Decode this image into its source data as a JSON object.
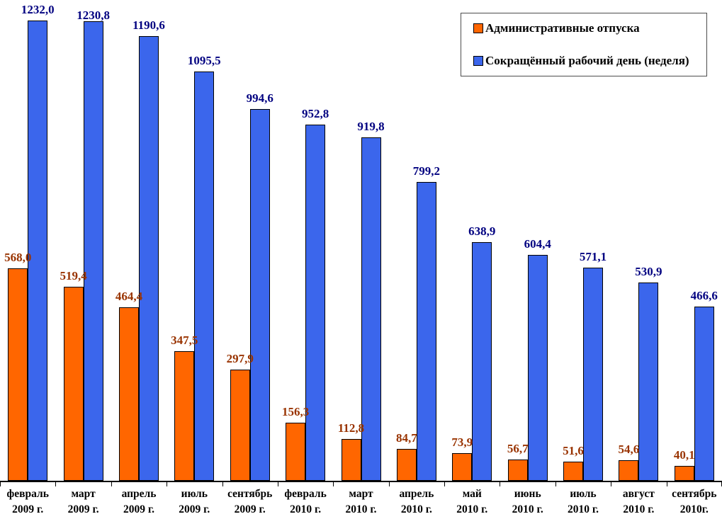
{
  "chart_data": {
    "type": "bar",
    "title": "",
    "xlabel": "",
    "ylabel": "",
    "ylim": [
      0,
      1300
    ],
    "grid": false,
    "legend_position": "top-right",
    "value_decimal_separator": ",",
    "axis_color": "#000000",
    "bar_border_color": "#000000",
    "categories": [
      {
        "month": "февраль",
        "year": "2009 г."
      },
      {
        "month": "март",
        "year": "2009 г."
      },
      {
        "month": "апрель",
        "year": "2009 г."
      },
      {
        "month": "июль",
        "year": "2009 г."
      },
      {
        "month": "сентябрь",
        "year": "2009 г."
      },
      {
        "month": "февраль",
        "year": "2010 г."
      },
      {
        "month": "март",
        "year": "2010 г."
      },
      {
        "month": "апрель",
        "year": "2010 г."
      },
      {
        "month": "май",
        "year": "2010 г."
      },
      {
        "month": "июнь",
        "year": "2010 г."
      },
      {
        "month": "июль",
        "year": "2010 г."
      },
      {
        "month": "август",
        "year": "2010 г."
      },
      {
        "month": "сентябрь",
        "year": "2010г."
      }
    ],
    "series": [
      {
        "name": "Административные отпуска",
        "color": "#FF6600",
        "label_color": "#993300",
        "values": [
          568.0,
          519.4,
          464.4,
          347.5,
          297.9,
          156.3,
          112.8,
          84.7,
          73.9,
          56.7,
          51.6,
          54.6,
          40.1
        ],
        "labels": [
          "568,0",
          "519,4",
          "464,4",
          "347,5",
          "297,9",
          "156,3",
          "112,8",
          "84,7",
          "73,9",
          "56,7",
          "51,6",
          "54,6",
          "40,1"
        ]
      },
      {
        "name": "Сокращённый рабочий день (неделя)",
        "color": "#3B66EC",
        "label_color": "#000080",
        "values": [
          1232.0,
          1230.8,
          1190.6,
          1095.5,
          994.6,
          952.8,
          919.8,
          799.2,
          638.9,
          604.4,
          571.1,
          530.9,
          466.6
        ],
        "labels": [
          "1232,0",
          "1230,8",
          "1190,6",
          "1095,5",
          "994,6",
          "952,8",
          "919,8",
          "799,2",
          "638,9",
          "604,4",
          "571,1",
          "530,9",
          "466,6"
        ]
      }
    ]
  }
}
